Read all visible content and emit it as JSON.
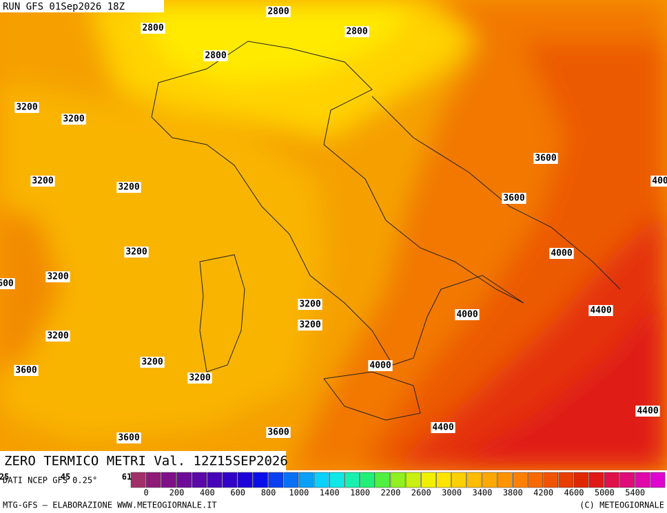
{
  "header": {
    "run": "RUN GFS 01Sep2026 18Z",
    "title": "ZERO TERMICO METRI Val. 12Z15SEP2026"
  },
  "contour_labels": [
    "2800",
    "2800",
    "2800",
    "2800",
    "3200",
    "3200",
    "3600",
    "3200",
    "3200",
    "3600",
    "400",
    "3200",
    "4000",
    "3200",
    "600",
    "3200",
    "4400",
    "4000",
    "3200",
    "3200",
    "3200",
    "4000",
    "3600",
    "3200",
    "4400",
    "4400",
    "3600",
    "3600"
  ],
  "colorbar": {
    "source": "DATI NCEP GFS 0.25°",
    "overlay": [
      "25",
      "45",
      "61"
    ],
    "labels": [
      "0",
      "200",
      "400",
      "600",
      "800",
      "1000",
      "1400",
      "1800",
      "2200",
      "2600",
      "3000",
      "3400",
      "3800",
      "4200",
      "4600",
      "5000",
      "5400"
    ],
    "colors": [
      "#a0306a",
      "#901a78",
      "#7e1088",
      "#6c0c98",
      "#5a08a8",
      "#4606b8",
      "#3204c8",
      "#1e04d8",
      "#0a10e8",
      "#0a40f0",
      "#0a70f4",
      "#0aa0f8",
      "#0ad0fc",
      "#10e8e8",
      "#18f0b0",
      "#20f078",
      "#50f040",
      "#90f020",
      "#c8f010",
      "#f0f000",
      "#ffe400",
      "#ffd000",
      "#ffbc00",
      "#ffa800",
      "#ff9400",
      "#ff8000",
      "#f86a00",
      "#f05400",
      "#e83e00",
      "#e02800",
      "#e01818",
      "#e0104a",
      "#e00c7a",
      "#e008a8",
      "#e004d0"
    ]
  },
  "footer": {
    "left": "MTG-GFS — ELABORAZIONE WWW.METEOGIORNALE.IT",
    "right": "(C) METEOGIORNALE"
  }
}
